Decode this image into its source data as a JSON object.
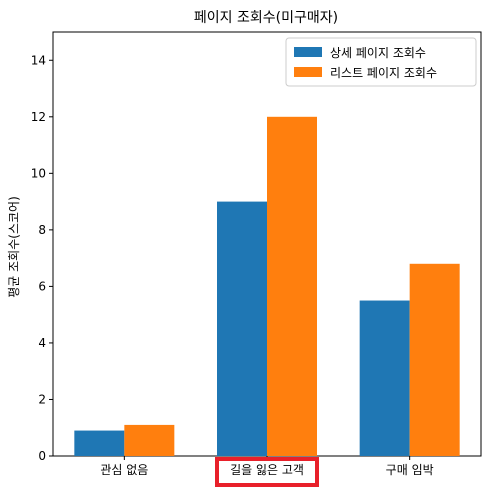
{
  "chart_data": {
    "type": "bar",
    "title": "페이지 조회수(미구매자)",
    "xlabel": "",
    "ylabel": "평균 조회수(스코어)",
    "categories": [
      "관심 없음",
      "길을 잃은 고객",
      "구매 임박"
    ],
    "series": [
      {
        "name": "상세 페이지 조회수",
        "color": "#1f77b4",
        "values": [
          0.9,
          9.0,
          5.5
        ]
      },
      {
        "name": "리스트 페이지 조회수",
        "color": "#ff7f0e",
        "values": [
          1.1,
          12.0,
          6.8
        ]
      }
    ],
    "ylim": [
      0,
      15
    ],
    "yticks": [
      0,
      2,
      4,
      6,
      8,
      10,
      12,
      14
    ],
    "grid": false,
    "legend_position": "top-right",
    "highlight": {
      "category": "길을 잃은 고객",
      "color": "#e8202a"
    }
  }
}
